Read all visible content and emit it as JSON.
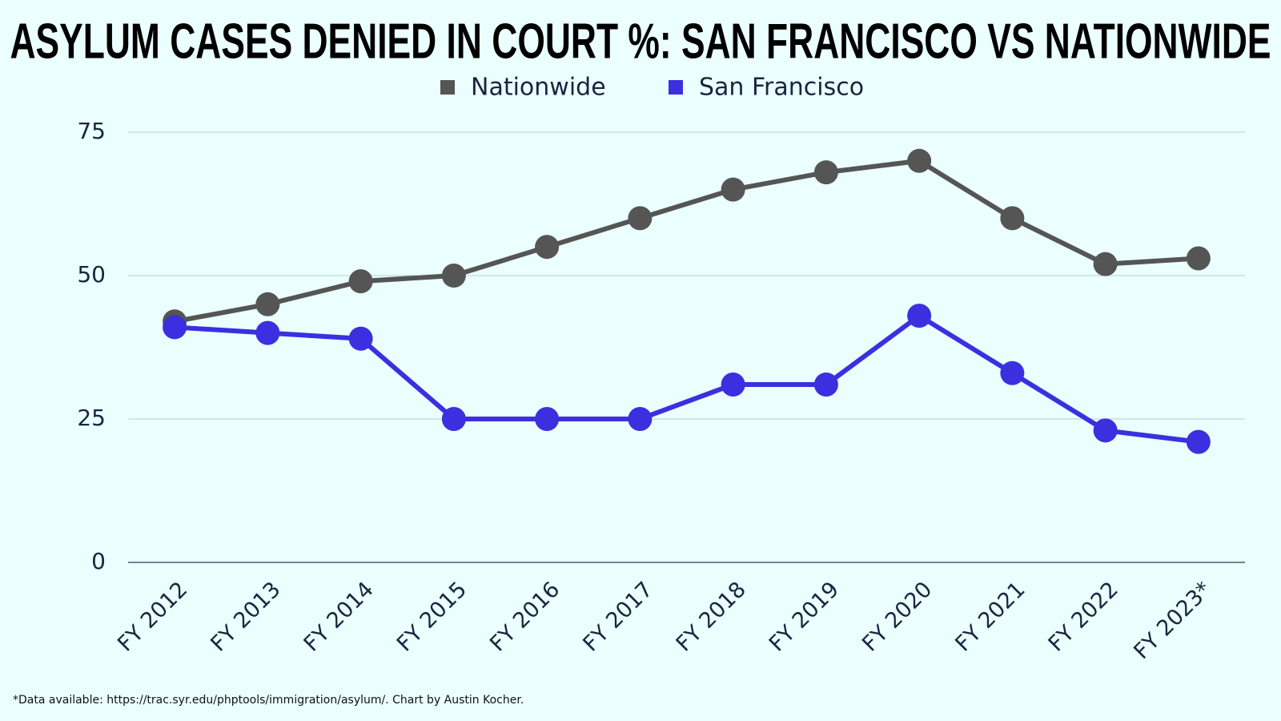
{
  "chart_data": {
    "type": "line",
    "title": "ASYLUM CASES DENIED IN COURT %: SAN FRANCISCO VS NATIONWIDE",
    "footnote": "*Data available: https://trac.syr.edu/phptools/immigration/asylum/. Chart by Austin Kocher.",
    "categories": [
      "FY 2012",
      "FY 2013",
      "FY 2014",
      "FY 2015",
      "FY 2016",
      "FY 2017",
      "FY 2018",
      "FY 2019",
      "FY 2020",
      "FY 2021",
      "FY 2022",
      "FY 2023*"
    ],
    "series": [
      {
        "name": "Nationwide",
        "color": "#555555",
        "values": [
          42,
          45,
          49,
          50,
          55,
          60,
          65,
          68,
          70,
          60,
          52,
          53
        ]
      },
      {
        "name": "San Francisco",
        "color": "#3b2fe0",
        "values": [
          41,
          40,
          39,
          25,
          25,
          25,
          31,
          31,
          43,
          33,
          23,
          21
        ]
      }
    ],
    "ylim": [
      0,
      75
    ],
    "yticks": [
      0,
      25,
      50,
      75
    ],
    "grid": true,
    "legend": "top"
  }
}
